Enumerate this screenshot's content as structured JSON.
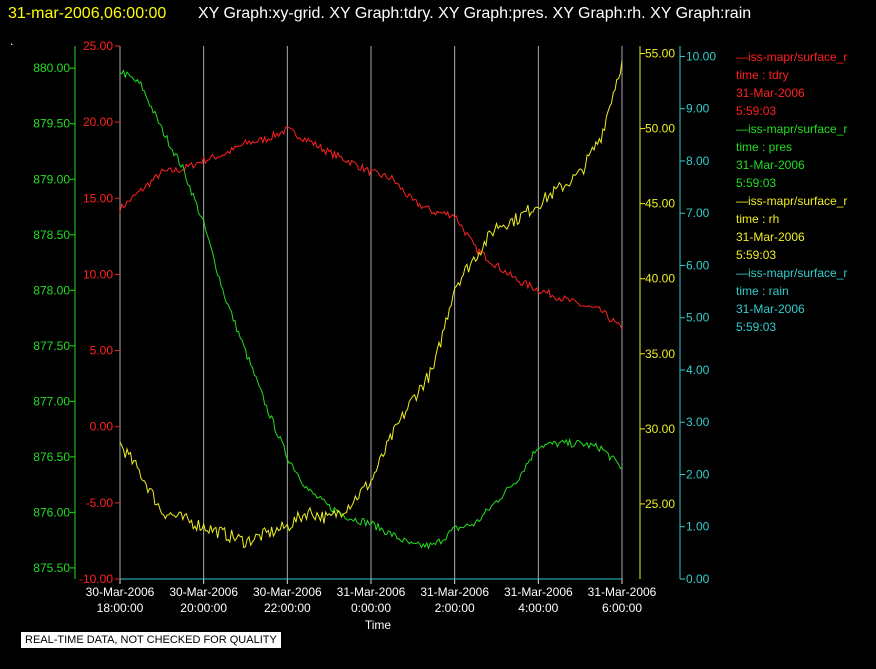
{
  "header": {
    "timestamp": "31-mar-2006,06:00:00",
    "titles": "XY Graph:xy-grid.  XY Graph:tdry.  XY Graph:pres.  XY Graph:rh.  XY Graph:rain",
    "dot": "."
  },
  "legend": [
    {
      "name": "—iss-mapr/surface_r",
      "field": "time : tdry",
      "date": "31-Mar-2006",
      "time": "5:59:03",
      "color": "#ff2020"
    },
    {
      "name": "—iss-mapr/surface_r",
      "field": "time : pres",
      "date": "31-Mar-2006",
      "time": "5:59:03",
      "color": "#22dd22"
    },
    {
      "name": "—iss-mapr/surface_r",
      "field": "time : rh",
      "date": "31-Mar-2006",
      "time": "5:59:03",
      "color": "#eeee22"
    },
    {
      "name": "—iss-mapr/surface_r",
      "field": "time : rain",
      "date": "31-Mar-2006",
      "time": "5:59:03",
      "color": "#33cccc"
    }
  ],
  "footer": {
    "disclaimer": "REAL-TIME DATA, NOT CHECKED FOR QUALITY"
  },
  "chart_data": {
    "type": "line",
    "xlabel": "Time",
    "x_range": [
      "30-Mar-2006 18:00:00",
      "31-Mar-2006 06:00:00"
    ],
    "x_ticks": [
      {
        "date": "30-Mar-2006",
        "time": "18:00:00"
      },
      {
        "date": "30-Mar-2006",
        "time": "20:00:00"
      },
      {
        "date": "30-Mar-2006",
        "time": "22:00:00"
      },
      {
        "date": "31-Mar-2006",
        "time": "0:00:00"
      },
      {
        "date": "31-Mar-2006",
        "time": "2:00:00"
      },
      {
        "date": "31-Mar-2006",
        "time": "4:00:00"
      },
      {
        "date": "31-Mar-2006",
        "time": "6:00:00"
      }
    ],
    "vertical_grid": true,
    "axes": {
      "tdry": {
        "color": "#ff2020",
        "range": [
          -10,
          25
        ],
        "ticks": [
          "25.00",
          "20.00",
          "15.00",
          "10.00",
          "5.00",
          "0.00",
          "-5.00",
          "-10.00"
        ]
      },
      "pres": {
        "color": "#22dd22",
        "range": [
          875.4,
          880.2
        ],
        "ticks": [
          "880.00",
          "879.50",
          "879.00",
          "878.50",
          "878.00",
          "877.50",
          "877.00",
          "876.50",
          "876.00",
          "875.50"
        ]
      },
      "rh": {
        "color": "#eeee22",
        "range": [
          20,
          55.5
        ],
        "ticks": [
          "55.00",
          "50.00",
          "45.00",
          "40.00",
          "35.00",
          "30.00",
          "25.00"
        ]
      },
      "rain": {
        "color": "#33cccc",
        "range": [
          0,
          10.2
        ],
        "ticks": [
          "10.00",
          "9.00",
          "8.00",
          "7.00",
          "6.00",
          "5.00",
          "4.00",
          "3.00",
          "2.00",
          "1.00",
          "0.00"
        ]
      }
    },
    "series": [
      {
        "name": "tdry",
        "axis": "tdry",
        "color": "#ff2020",
        "x": [
          18,
          18.5,
          19,
          19.5,
          20,
          20.5,
          21,
          21.5,
          22,
          22.5,
          23,
          23.5,
          24,
          24.5,
          25,
          25.5,
          26,
          26.5,
          27,
          27.5,
          28,
          28.5,
          29,
          29.5,
          30
        ],
        "y": [
          14.3,
          15.5,
          16.7,
          16.9,
          17.5,
          17.9,
          18.6,
          18.9,
          19.5,
          18.8,
          18.0,
          17.4,
          16.7,
          16.3,
          14.8,
          14.1,
          13.9,
          11.7,
          10.6,
          9.6,
          9.0,
          8.5,
          8.0,
          7.6,
          6.4
        ]
      },
      {
        "name": "pres",
        "axis": "pres",
        "color": "#22dd22",
        "x": [
          18,
          18.5,
          19,
          19.5,
          20,
          20.5,
          21,
          21.5,
          22,
          22.5,
          23,
          23.5,
          24,
          24.5,
          25,
          25.5,
          26,
          26.5,
          27,
          27.5,
          28,
          28.5,
          29,
          29.5,
          30
        ],
        "y": [
          879.98,
          879.85,
          879.45,
          879.1,
          878.6,
          877.95,
          877.45,
          876.95,
          876.5,
          876.2,
          876.05,
          875.95,
          875.9,
          875.8,
          875.7,
          875.7,
          875.85,
          875.9,
          876.1,
          876.3,
          876.6,
          876.62,
          876.62,
          876.58,
          876.4
        ]
      },
      {
        "name": "rh",
        "axis": "rh",
        "color": "#eeee22",
        "x": [
          18,
          18.5,
          19,
          19.5,
          20,
          20.5,
          21,
          21.5,
          22,
          22.5,
          23,
          23.5,
          24,
          24.5,
          25,
          25.5,
          26,
          26.5,
          27,
          27.5,
          28,
          28.5,
          29,
          29.5,
          30
        ],
        "y": [
          29.0,
          27.0,
          24.5,
          24.0,
          23.5,
          23.0,
          22.5,
          23.0,
          23.5,
          24.5,
          24.0,
          25.0,
          26.5,
          29.5,
          32.0,
          34.0,
          39.5,
          41.5,
          43.5,
          44.0,
          45.0,
          46.0,
          47.0,
          49.5,
          54.5
        ]
      },
      {
        "name": "rain",
        "axis": "rain",
        "color": "#33cccc",
        "x": [
          18,
          30
        ],
        "y": [
          0.0,
          0.0
        ]
      }
    ]
  }
}
